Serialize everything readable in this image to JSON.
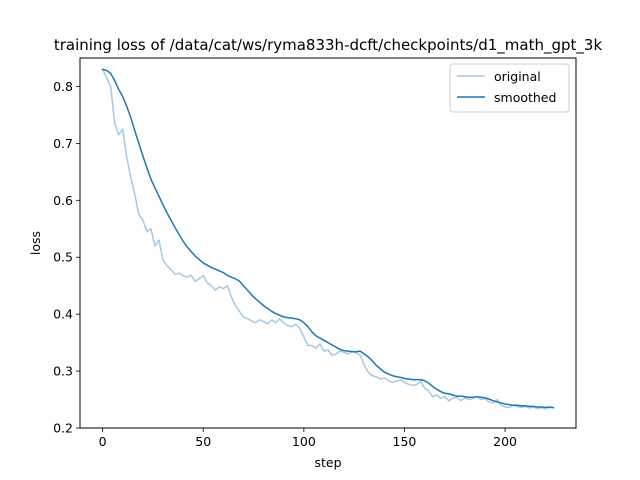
{
  "chart_data": {
    "type": "line",
    "title": "training loss of /data/cat/ws/ryma833h-dcft/checkpoints/d1_math_gpt_3k",
    "xlabel": "step",
    "ylabel": "loss",
    "xlim": [
      -11.25,
      235.25
    ],
    "ylim": [
      0.2,
      0.85
    ],
    "xticks": [
      0,
      50,
      100,
      150,
      200
    ],
    "yticks": [
      0.2,
      0.3,
      0.4,
      0.5,
      0.6,
      0.7,
      0.8
    ],
    "grid": false,
    "legend": {
      "placement": "upper-right",
      "entries": [
        "original",
        "smoothed"
      ]
    },
    "series": [
      {
        "name": "original",
        "color": "#1f77b4",
        "opacity": 0.4,
        "x": [
          0,
          2,
          4,
          6,
          8,
          10,
          12,
          14,
          16,
          18,
          20,
          22,
          24,
          26,
          28,
          30,
          32,
          34,
          36,
          38,
          40,
          42,
          44,
          46,
          48,
          50,
          52,
          54,
          56,
          58,
          60,
          62,
          64,
          66,
          68,
          70,
          72,
          74,
          76,
          78,
          80,
          82,
          84,
          86,
          88,
          90,
          92,
          94,
          96,
          98,
          100,
          102,
          104,
          106,
          108,
          110,
          112,
          114,
          116,
          118,
          120,
          122,
          124,
          126,
          128,
          130,
          132,
          134,
          136,
          138,
          140,
          142,
          144,
          146,
          148,
          150,
          152,
          154,
          156,
          158,
          160,
          162,
          164,
          166,
          168,
          170,
          172,
          174,
          176,
          178,
          180,
          182,
          184,
          186,
          188,
          190,
          192,
          194,
          196,
          198,
          200,
          202,
          204,
          206,
          208,
          210,
          212,
          214,
          216,
          218,
          220,
          222,
          224
        ],
        "y": [
          0.83,
          0.815,
          0.8,
          0.735,
          0.715,
          0.725,
          0.675,
          0.64,
          0.61,
          0.575,
          0.565,
          0.545,
          0.55,
          0.52,
          0.53,
          0.495,
          0.485,
          0.478,
          0.47,
          0.472,
          0.468,
          0.465,
          0.468,
          0.458,
          0.462,
          0.468,
          0.455,
          0.45,
          0.442,
          0.448,
          0.445,
          0.45,
          0.43,
          0.415,
          0.405,
          0.395,
          0.392,
          0.388,
          0.385,
          0.39,
          0.387,
          0.383,
          0.39,
          0.385,
          0.392,
          0.385,
          0.38,
          0.378,
          0.382,
          0.375,
          0.36,
          0.345,
          0.345,
          0.34,
          0.348,
          0.335,
          0.337,
          0.328,
          0.33,
          0.335,
          0.333,
          0.33,
          0.335,
          0.332,
          0.328,
          0.31,
          0.298,
          0.292,
          0.29,
          0.286,
          0.288,
          0.283,
          0.28,
          0.282,
          0.285,
          0.28,
          0.277,
          0.275,
          0.276,
          0.282,
          0.27,
          0.265,
          0.255,
          0.258,
          0.252,
          0.255,
          0.248,
          0.252,
          0.254,
          0.248,
          0.253,
          0.25,
          0.252,
          0.255,
          0.25,
          0.252,
          0.246,
          0.244,
          0.25,
          0.24,
          0.237,
          0.236,
          0.24,
          0.238,
          0.236,
          0.238,
          0.235,
          0.237,
          0.234,
          0.236,
          0.234,
          0.236,
          0.235
        ]
      },
      {
        "name": "smoothed",
        "color": "#1f77b4",
        "opacity": 1,
        "x": [
          0,
          2,
          4,
          6,
          8,
          10,
          12,
          14,
          16,
          18,
          20,
          22,
          24,
          26,
          28,
          30,
          32,
          34,
          36,
          38,
          40,
          42,
          44,
          46,
          48,
          50,
          52,
          54,
          56,
          58,
          60,
          62,
          64,
          66,
          68,
          70,
          72,
          74,
          76,
          78,
          80,
          82,
          84,
          86,
          88,
          90,
          92,
          94,
          96,
          98,
          100,
          102,
          104,
          106,
          108,
          110,
          112,
          114,
          116,
          118,
          120,
          122,
          124,
          126,
          128,
          130,
          132,
          134,
          136,
          138,
          140,
          142,
          144,
          146,
          148,
          150,
          152,
          154,
          156,
          158,
          160,
          162,
          164,
          166,
          168,
          170,
          172,
          174,
          176,
          178,
          180,
          182,
          184,
          186,
          188,
          190,
          192,
          194,
          196,
          198,
          200,
          202,
          204,
          206,
          208,
          210,
          212,
          214,
          216,
          218,
          220,
          222,
          224
        ],
        "y": [
          0.83,
          0.828,
          0.823,
          0.81,
          0.795,
          0.782,
          0.765,
          0.745,
          0.722,
          0.7,
          0.678,
          0.657,
          0.637,
          0.622,
          0.607,
          0.592,
          0.578,
          0.565,
          0.552,
          0.54,
          0.528,
          0.518,
          0.51,
          0.502,
          0.496,
          0.49,
          0.486,
          0.482,
          0.479,
          0.476,
          0.473,
          0.468,
          0.465,
          0.462,
          0.458,
          0.45,
          0.442,
          0.434,
          0.427,
          0.421,
          0.415,
          0.41,
          0.405,
          0.401,
          0.398,
          0.395,
          0.394,
          0.393,
          0.392,
          0.39,
          0.385,
          0.378,
          0.369,
          0.362,
          0.358,
          0.354,
          0.35,
          0.346,
          0.342,
          0.338,
          0.336,
          0.335,
          0.334,
          0.334,
          0.335,
          0.33,
          0.325,
          0.318,
          0.31,
          0.304,
          0.298,
          0.295,
          0.292,
          0.29,
          0.289,
          0.287,
          0.286,
          0.285,
          0.285,
          0.285,
          0.283,
          0.279,
          0.273,
          0.268,
          0.264,
          0.261,
          0.26,
          0.258,
          0.256,
          0.256,
          0.255,
          0.254,
          0.254,
          0.255,
          0.254,
          0.253,
          0.251,
          0.248,
          0.246,
          0.244,
          0.242,
          0.241,
          0.24,
          0.24,
          0.239,
          0.239,
          0.238,
          0.238,
          0.237,
          0.237,
          0.236,
          0.237,
          0.236
        ]
      }
    ]
  }
}
